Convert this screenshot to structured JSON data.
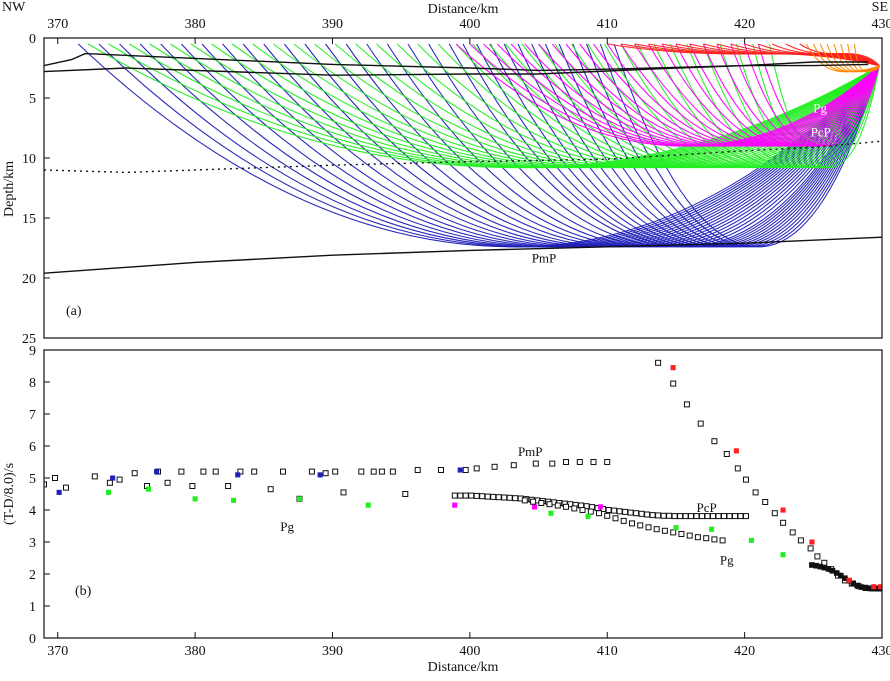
{
  "chart_data": [
    {
      "panel": "a",
      "type": "line",
      "panel_label": "(a)",
      "corner_left": "NW",
      "corner_right": "SE",
      "xlabel": "Distance/km",
      "ylabel": "Depth/km",
      "xlim": [
        369,
        430
      ],
      "ylim": [
        0,
        25
      ],
      "xticks": [
        370,
        380,
        390,
        400,
        410,
        420,
        430
      ],
      "yticks": [
        0,
        5,
        10,
        15,
        20,
        25
      ],
      "ray_colors": {
        "Pg": "#22ee22",
        "PcP": "#ff00ff",
        "PmP": "#1f1fb8",
        "shallow_red": "#ff2020",
        "shallow_orange": "#ff8800"
      },
      "interfaces": [
        {
          "name": "surface-layer-base",
          "style": "solid",
          "x": [
            369,
            371,
            372,
            390,
            400,
            405,
            410,
            420,
            425,
            429
          ],
          "depth": [
            2.3,
            1.8,
            1.3,
            2.2,
            2.5,
            2.7,
            2.6,
            2.3,
            2.3,
            2.2
          ]
        },
        {
          "name": "upper-layer-base",
          "style": "solid",
          "x": [
            369,
            375,
            390,
            400,
            405,
            413,
            420,
            425,
            429
          ],
          "depth": [
            2.8,
            2.5,
            3.1,
            3.0,
            3.0,
            2.6,
            2.3,
            2.0,
            2.0
          ]
        },
        {
          "name": "crustal-reflector",
          "style": "dotted",
          "x": [
            369,
            375,
            380,
            385,
            390,
            400,
            410,
            420,
            425,
            430
          ],
          "depth": [
            11.0,
            11.2,
            11.0,
            10.8,
            10.6,
            10.3,
            10.1,
            9.4,
            9.1,
            8.6
          ]
        },
        {
          "name": "moho",
          "style": "solid",
          "x": [
            369,
            380,
            390,
            400,
            410,
            420,
            430
          ],
          "depth": [
            19.6,
            18.7,
            18.1,
            17.7,
            17.4,
            17.1,
            16.6
          ]
        }
      ],
      "source": {
        "x": 429.8,
        "depth": 2.3
      },
      "ray_groups": [
        {
          "phase": "PmP",
          "bottom_depth": 17.4,
          "offsets": [
            371.5,
            373,
            374.5,
            376,
            377.5,
            379,
            380.5,
            382,
            383.5,
            385,
            386.5,
            388,
            389.5,
            391,
            392.5,
            394,
            395.5,
            397,
            398.5,
            399.5,
            400.5,
            401.5,
            402.5,
            403.5,
            404.5,
            405.5,
            406.5,
            407.5,
            408.5,
            409.5,
            410.5
          ]
        },
        {
          "phase": "Pg",
          "bottom_depth": 10.8,
          "offsets": [
            372.2,
            373.7,
            375.2,
            376.7,
            378.2,
            379.7,
            381.2,
            382.7,
            384.2,
            385.7,
            387.2,
            388.7,
            390.2,
            391.7,
            393.2,
            394.7,
            396.2,
            397.7,
            399.0,
            400.2,
            401.4,
            402.6,
            403.8,
            405.0,
            406.2,
            407.4,
            408.6,
            409.8,
            411,
            412.2,
            413.4,
            414.6,
            415.8,
            417,
            418.2,
            419.4,
            420.6,
            421.8
          ]
        },
        {
          "phase": "PcP",
          "bottom_depth": 9.0,
          "offsets": [
            399,
            400,
            401,
            402,
            403,
            404,
            405,
            406,
            407,
            408,
            409,
            410,
            411,
            412,
            413,
            414,
            415,
            416,
            417,
            418,
            419,
            420,
            421
          ]
        },
        {
          "phase": "shallow_red",
          "bottom_depth": 1.3,
          "offsets": [
            410,
            411,
            412,
            413,
            414,
            415,
            416,
            417,
            418,
            419,
            420,
            421,
            422,
            423,
            424
          ]
        },
        {
          "phase": "shallow_orange",
          "bottom_depth": 2.8,
          "offsets": [
            424.5,
            425,
            425.5,
            426,
            426.5,
            427,
            427.5,
            428
          ]
        }
      ],
      "annotations": [
        {
          "text": "Pg",
          "x": 425.0,
          "depth": 5.8,
          "color": "#ffffff"
        },
        {
          "text": "PcP",
          "x": 424.8,
          "depth": 7.8,
          "color": "#ffffff"
        },
        {
          "text": "PmP",
          "x": 404.5,
          "depth": 18.3,
          "color": "#111111"
        }
      ]
    },
    {
      "panel": "b",
      "type": "scatter",
      "panel_label": "(b)",
      "xlabel": "Distance/km",
      "ylabel": "(T-D/8.0)/s",
      "xlim": [
        369,
        430
      ],
      "ylim": [
        0,
        9
      ],
      "xticks": [
        370,
        380,
        390,
        400,
        410,
        420,
        430
      ],
      "yticks": [
        0,
        1,
        2,
        3,
        4,
        5,
        6,
        7,
        8,
        9
      ],
      "phase_labels": [
        {
          "text": "PmP",
          "x": 403.5,
          "y": 5.85
        },
        {
          "text": "PcP",
          "x": 416.5,
          "y": 4.1
        },
        {
          "text": "Pg",
          "x": 418.2,
          "y": 2.45
        },
        {
          "text": "Pg",
          "x": 386.2,
          "y": 3.5
        }
      ],
      "series": [
        {
          "name": "PmP-calculated",
          "marker": "open-square",
          "color": "#111111",
          "x": [
            369.0,
            369.8,
            370.6,
            372.7,
            373.8,
            374.5,
            375.6,
            376.5,
            377.3,
            378.0,
            379.0,
            379.8,
            380.6,
            381.5,
            382.4,
            383.3,
            384.3,
            385.5,
            386.4,
            387.6,
            388.5,
            389.5,
            390.2,
            390.8,
            392.1,
            393.0,
            393.6,
            394.4,
            395.3,
            396.2,
            397.9,
            399.7,
            400.5,
            401.8,
            403.2,
            404.8,
            406.0,
            407.0,
            408.0,
            409.0,
            410.0
          ],
          "y": [
            4.8,
            5.0,
            4.7,
            5.05,
            4.85,
            4.95,
            5.15,
            4.75,
            5.2,
            4.85,
            5.2,
            4.75,
            5.2,
            5.2,
            4.75,
            5.2,
            5.2,
            4.65,
            5.2,
            4.35,
            5.2,
            5.15,
            5.2,
            4.55,
            5.2,
            5.2,
            5.2,
            5.2,
            4.5,
            5.25,
            5.25,
            5.25,
            5.3,
            5.35,
            5.4,
            5.45,
            5.45,
            5.5,
            5.5,
            5.5,
            5.5
          ]
        },
        {
          "name": "PmP-observed",
          "marker": "filled-square",
          "color": "#1f1fb8",
          "x": [
            370.1,
            374.0,
            377.2,
            383.1,
            389.1,
            399.3
          ],
          "y": [
            4.55,
            5.0,
            5.2,
            5.1,
            5.1,
            5.25
          ]
        },
        {
          "name": "PcP-calculated",
          "marker": "open-square",
          "color": "#111111",
          "x": [
            398.9,
            399.3,
            399.7,
            400.1,
            400.5,
            400.9,
            401.3,
            401.7,
            402.1,
            402.5,
            402.9,
            403.3,
            403.7,
            404.1,
            404.5,
            404.9,
            405.3,
            405.7,
            406.1,
            406.5,
            406.9,
            407.3,
            407.7,
            408.1,
            408.5,
            408.9,
            409.3,
            409.7,
            410.1,
            410.5,
            410.9,
            411.3,
            411.7,
            412.1,
            412.5,
            412.9,
            413.3,
            413.7,
            414.1,
            414.5,
            414.9,
            415.3,
            415.7,
            416.1,
            416.5,
            416.9,
            417.3,
            417.7,
            418.1,
            418.5,
            418.9,
            419.3,
            419.7,
            420.1
          ],
          "y": [
            4.45,
            4.45,
            4.45,
            4.45,
            4.44,
            4.43,
            4.42,
            4.41,
            4.4,
            4.39,
            4.38,
            4.37,
            4.36,
            4.34,
            4.32,
            4.3,
            4.28,
            4.26,
            4.24,
            4.22,
            4.2,
            4.18,
            4.16,
            4.14,
            4.12,
            4.09,
            4.06,
            4.03,
            4.0,
            3.98,
            3.96,
            3.94,
            3.92,
            3.9,
            3.88,
            3.86,
            3.84,
            3.83,
            3.82,
            3.82,
            3.81,
            3.81,
            3.81,
            3.81,
            3.81,
            3.81,
            3.81,
            3.81,
            3.81,
            3.81,
            3.81,
            3.81,
            3.81,
            3.81
          ]
        },
        {
          "name": "PcP-observed",
          "marker": "filled-square",
          "color": "#ff00ff",
          "x": [
            398.9,
            404.7,
            409.5
          ],
          "y": [
            4.15,
            4.1,
            4.1
          ]
        },
        {
          "name": "Pg-calculated",
          "marker": "open-square",
          "color": "#111111",
          "x": [
            404.0,
            404.6,
            405.2,
            405.8,
            406.4,
            407.0,
            407.6,
            408.2,
            408.8,
            409.4,
            410.0,
            410.6,
            411.2,
            411.8,
            412.4,
            413.0,
            413.6,
            414.2,
            414.8,
            415.4,
            416.0,
            416.6,
            417.2,
            417.8,
            418.4
          ],
          "y": [
            4.3,
            4.26,
            4.22,
            4.18,
            4.14,
            4.1,
            4.05,
            4.0,
            3.95,
            3.9,
            3.82,
            3.74,
            3.66,
            3.58,
            3.52,
            3.46,
            3.4,
            3.35,
            3.3,
            3.25,
            3.2,
            3.15,
            3.12,
            3.08,
            3.05
          ]
        },
        {
          "name": "Pg-observed",
          "marker": "filled-square",
          "color": "#22ee22",
          "x": [
            373.7,
            376.6,
            380.0,
            382.8,
            387.6,
            392.6,
            405.9,
            408.6,
            415.0,
            417.6,
            420.5,
            422.8
          ],
          "y": [
            4.55,
            4.65,
            4.35,
            4.3,
            4.35,
            4.15,
            3.9,
            3.8,
            3.45,
            3.4,
            3.05,
            2.6
          ]
        },
        {
          "name": "shallow-branch-calculated",
          "marker": "open-square",
          "color": "#111111",
          "x": [
            413.7,
            414.8,
            415.8,
            416.8,
            417.8,
            418.7,
            419.5,
            420.1,
            420.8,
            421.5,
            422.2,
            422.8,
            423.5,
            424.1,
            424.8,
            425.3,
            425.8,
            426.3,
            426.8,
            427.3,
            427.8,
            428.3,
            428.8,
            429.3,
            429.8
          ],
          "y": [
            8.6,
            7.95,
            7.3,
            6.7,
            6.15,
            5.75,
            5.3,
            4.95,
            4.55,
            4.25,
            3.9,
            3.6,
            3.3,
            3.05,
            2.8,
            2.55,
            2.35,
            2.15,
            1.95,
            1.8,
            1.7,
            1.62,
            1.57,
            1.55,
            1.55
          ]
        },
        {
          "name": "direct-wave-calculated",
          "marker": "filled-square",
          "color": "#111111",
          "x": [
            424.9,
            425.2,
            425.5,
            425.8,
            426.1,
            426.4,
            426.7,
            427.0,
            427.3,
            427.6,
            427.9,
            428.2,
            428.5,
            428.8,
            429.1,
            429.4,
            429.7,
            430.0
          ],
          "y": [
            2.28,
            2.26,
            2.23,
            2.2,
            2.16,
            2.1,
            2.03,
            1.95,
            1.87,
            1.79,
            1.71,
            1.64,
            1.59,
            1.56,
            1.55,
            1.54,
            1.54,
            1.54
          ]
        },
        {
          "name": "shallow-branch-observed",
          "marker": "filled-square",
          "color": "#ff2020",
          "x": [
            414.8,
            419.4,
            422.8,
            424.9,
            427.6,
            429.4,
            429.9
          ],
          "y": [
            8.45,
            5.85,
            4.0,
            3.0,
            1.8,
            1.6,
            1.6
          ]
        }
      ]
    }
  ]
}
